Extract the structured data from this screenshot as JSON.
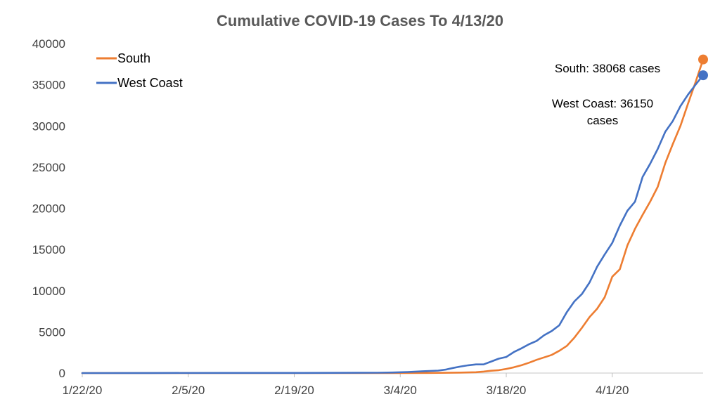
{
  "chart_data": {
    "type": "line",
    "title": "Cumulative COVID-19 Cases To 4/13/20",
    "xlabel": "",
    "ylabel": "",
    "x_start": "1/22/20",
    "x_end": "4/13/20",
    "x_ticks": [
      "1/22/20",
      "2/5/20",
      "2/19/20",
      "3/4/20",
      "3/18/20",
      "4/1/20"
    ],
    "ylim": [
      0,
      40000
    ],
    "y_ticks": [
      0,
      5000,
      10000,
      15000,
      20000,
      25000,
      30000,
      35000,
      40000
    ],
    "grid": false,
    "legend_position": "top-left",
    "series": [
      {
        "name": "South",
        "color": "#ED7D31",
        "points": [
          [
            "1/22/20",
            0
          ],
          [
            "2/1/20",
            0
          ],
          [
            "2/10/20",
            0
          ],
          [
            "2/20/20",
            0
          ],
          [
            "3/1/20",
            0
          ],
          [
            "3/4/20",
            5
          ],
          [
            "3/8/20",
            20
          ],
          [
            "3/12/20",
            60
          ],
          [
            "3/14/20",
            100
          ],
          [
            "3/15/20",
            180
          ],
          [
            "3/16/20",
            280
          ],
          [
            "3/17/20",
            350
          ],
          [
            "3/18/20",
            500
          ],
          [
            "3/19/20",
            700
          ],
          [
            "3/20/20",
            950
          ],
          [
            "3/21/20",
            1250
          ],
          [
            "3/22/20",
            1600
          ],
          [
            "3/23/20",
            1900
          ],
          [
            "3/24/20",
            2200
          ],
          [
            "3/25/20",
            2700
          ],
          [
            "3/26/20",
            3300
          ],
          [
            "3/27/20",
            4300
          ],
          [
            "3/28/20",
            5500
          ],
          [
            "3/29/20",
            6800
          ],
          [
            "3/30/20",
            7800
          ],
          [
            "3/31/20",
            9200
          ],
          [
            "4/1/20",
            11700
          ],
          [
            "4/2/20",
            12600
          ],
          [
            "4/3/20",
            15500
          ],
          [
            "4/4/20",
            17500
          ],
          [
            "4/5/20",
            19200
          ],
          [
            "4/6/20",
            20800
          ],
          [
            "4/7/20",
            22600
          ],
          [
            "4/8/20",
            25500
          ],
          [
            "4/9/20",
            27800
          ],
          [
            "4/10/20",
            30000
          ],
          [
            "4/11/20",
            32700
          ],
          [
            "4/12/20",
            35300
          ],
          [
            "4/13/20",
            38068
          ]
        ]
      },
      {
        "name": "West Coast",
        "color": "#4472C4",
        "points": [
          [
            "1/22/20",
            0
          ],
          [
            "1/31/20",
            10
          ],
          [
            "2/10/20",
            15
          ],
          [
            "2/20/20",
            20
          ],
          [
            "3/1/20",
            40
          ],
          [
            "3/3/20",
            70
          ],
          [
            "3/5/20",
            130
          ],
          [
            "3/7/20",
            220
          ],
          [
            "3/9/20",
            300
          ],
          [
            "3/10/20",
            420
          ],
          [
            "3/11/20",
            620
          ],
          [
            "3/12/20",
            800
          ],
          [
            "3/13/20",
            950
          ],
          [
            "3/14/20",
            1050
          ],
          [
            "3/15/20",
            1050
          ],
          [
            "3/16/20",
            1400
          ],
          [
            "3/17/20",
            1750
          ],
          [
            "3/18/20",
            1950
          ],
          [
            "3/19/20",
            2550
          ],
          [
            "3/20/20",
            3000
          ],
          [
            "3/21/20",
            3500
          ],
          [
            "3/22/20",
            3900
          ],
          [
            "3/23/20",
            4600
          ],
          [
            "3/24/20",
            5100
          ],
          [
            "3/25/20",
            5800
          ],
          [
            "3/26/20",
            7400
          ],
          [
            "3/27/20",
            8700
          ],
          [
            "3/28/20",
            9600
          ],
          [
            "3/29/20",
            11000
          ],
          [
            "3/30/20",
            12900
          ],
          [
            "3/31/20",
            14400
          ],
          [
            "4/1/20",
            15800
          ],
          [
            "4/2/20",
            17900
          ],
          [
            "4/3/20",
            19700
          ],
          [
            "4/4/20",
            20800
          ],
          [
            "4/5/20",
            23800
          ],
          [
            "4/6/20",
            25400
          ],
          [
            "4/7/20",
            27200
          ],
          [
            "4/8/20",
            29300
          ],
          [
            "4/9/20",
            30600
          ],
          [
            "4/10/20",
            32400
          ],
          [
            "4/11/20",
            33800
          ],
          [
            "4/12/20",
            35000
          ],
          [
            "4/13/20",
            36150
          ]
        ]
      }
    ],
    "annotations": [
      {
        "lines": [
          "South: 38068 cases"
        ]
      },
      {
        "lines": [
          "West Coast: 36150",
          "cases"
        ]
      }
    ]
  }
}
